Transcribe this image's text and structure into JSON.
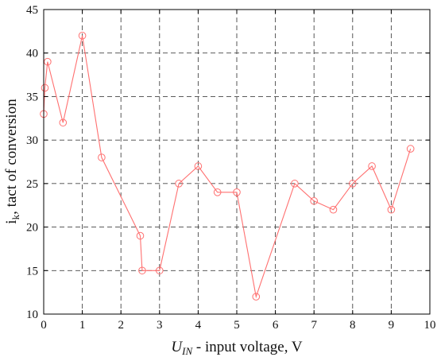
{
  "chart_data": {
    "type": "line",
    "title": "",
    "xlabel": {
      "main": "U",
      "subscript": "IN",
      "rest": " - input voltage, V"
    },
    "ylabel": {
      "main": "i",
      "subscript": "k",
      "rest": ", tact of conversion"
    },
    "xlim": [
      0,
      10
    ],
    "ylim": [
      10,
      45
    ],
    "xticks": [
      "0",
      "1",
      "2",
      "3",
      "4",
      "5",
      "6",
      "7",
      "8",
      "9",
      "10"
    ],
    "yticks": [
      "10",
      "15",
      "20",
      "25",
      "30",
      "35",
      "40",
      "45"
    ],
    "grid": true,
    "series": [
      {
        "color": "#ff7070",
        "marker": "circle",
        "points": [
          [
            0,
            33
          ],
          [
            0.03,
            36
          ],
          [
            0.1,
            39
          ],
          [
            0.5,
            32
          ],
          [
            1,
            42
          ],
          [
            1.5,
            28
          ],
          [
            2.5,
            19
          ],
          [
            2.55,
            15
          ],
          [
            3,
            15
          ],
          [
            3.5,
            25
          ],
          [
            4,
            27
          ],
          [
            4.5,
            24
          ],
          [
            5,
            24
          ],
          [
            5.5,
            12
          ],
          [
            6.5,
            25
          ],
          [
            7,
            23
          ],
          [
            7.5,
            22
          ],
          [
            8,
            25
          ],
          [
            8.5,
            27
          ],
          [
            9,
            22
          ],
          [
            9.5,
            29
          ]
        ]
      }
    ]
  }
}
